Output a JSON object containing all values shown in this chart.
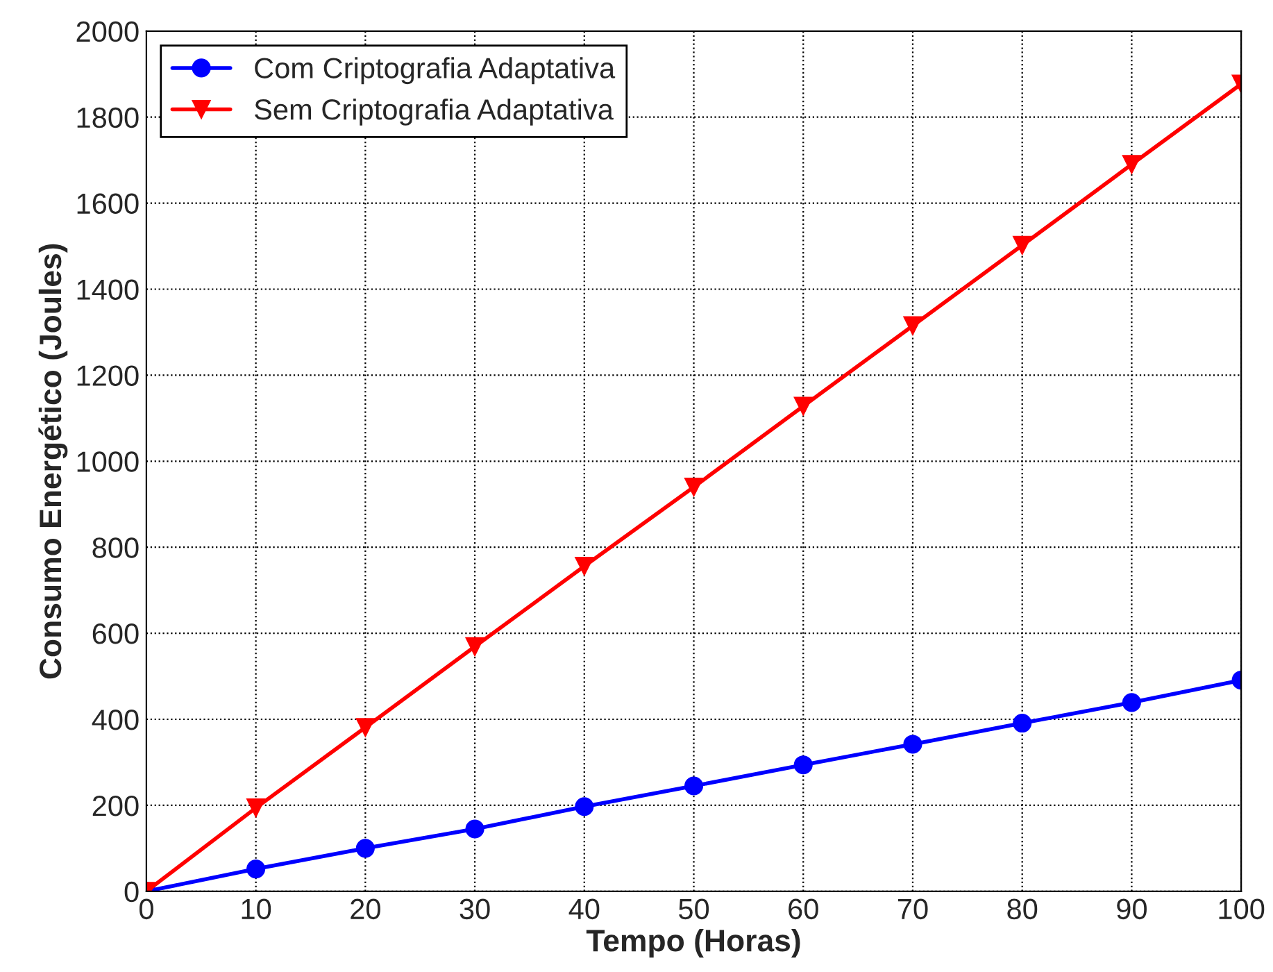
{
  "chart_data": {
    "type": "line",
    "xlabel": "Tempo (Horas)",
    "ylabel": "Consumo Energético (Joules)",
    "x": [
      0,
      10,
      20,
      30,
      40,
      50,
      60,
      70,
      80,
      90,
      100
    ],
    "series": [
      {
        "name": "Com Criptografia Adaptativa",
        "color": "#0000ff",
        "marker": "circle",
        "values": [
          0,
          52,
          100,
          145,
          197,
          245,
          294,
          342,
          391,
          439,
          491
        ]
      },
      {
        "name": "Sem Criptografia Adaptativa",
        "color": "#ff0000",
        "marker": "triangle",
        "values": [
          0,
          194,
          381,
          569,
          756,
          940,
          1128,
          1315,
          1502,
          1690,
          1877
        ]
      }
    ],
    "xlim": [
      0,
      100
    ],
    "xticks": [
      0,
      10,
      20,
      30,
      40,
      50,
      60,
      70,
      80,
      90,
      100
    ],
    "ylim": [
      0,
      2000
    ],
    "yticks": [
      0,
      200,
      400,
      600,
      800,
      1000,
      1200,
      1400,
      1600,
      1800,
      2000
    ],
    "grid": true,
    "legend": "top left",
    "line_style": "solid"
  }
}
